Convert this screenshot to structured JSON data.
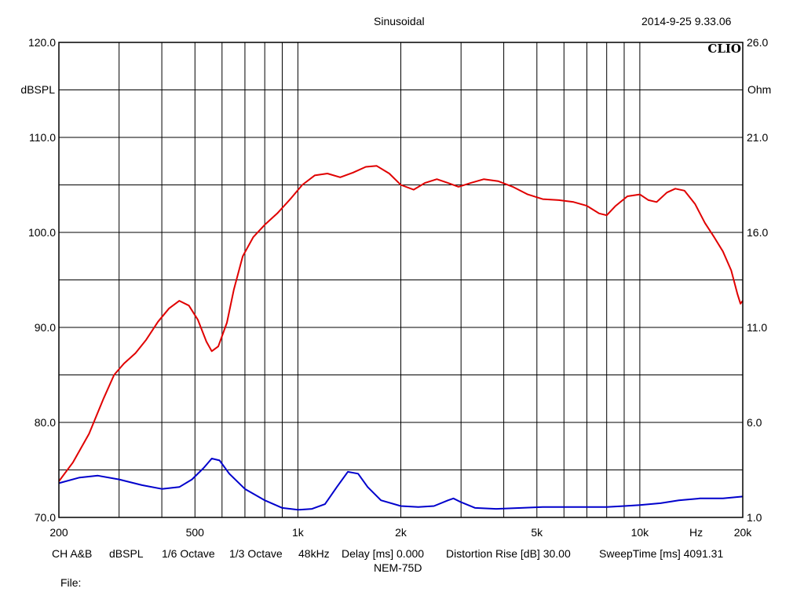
{
  "header": {
    "title": "Sinusoidal",
    "datetime": "2014-9-25 9.33.06",
    "brand": "CLIO"
  },
  "footer": {
    "settings": [
      {
        "key": "channel",
        "label": "CH A&B"
      },
      {
        "key": "unit",
        "label": "dBSPL"
      },
      {
        "key": "smoothing",
        "label": "1/6 Octave"
      },
      {
        "key": "resolution",
        "label": "1/3 Octave"
      },
      {
        "key": "samplerate",
        "label": "48kHz"
      },
      {
        "key": "delay",
        "label": "Delay [ms] 0.000"
      },
      {
        "key": "distortion",
        "label": "Distortion Rise [dB] 30.00"
      },
      {
        "key": "sweep",
        "label": "SweepTime [ms] 4091.31"
      }
    ],
    "device": "NEM-75D",
    "file_label": "File:"
  },
  "chart_data": {
    "type": "line",
    "xscale": "log",
    "xlim": [
      200,
      20000
    ],
    "ylim": [
      70,
      120
    ],
    "y2lim": [
      1,
      26
    ],
    "grid": true,
    "xlabel": "Hz",
    "ylabel": "dBSPL",
    "y2label": "Ohm",
    "x_ticks": [
      {
        "value": 200,
        "label": "200"
      },
      {
        "value": 500,
        "label": "500"
      },
      {
        "value": 1000,
        "label": "1k"
      },
      {
        "value": 2000,
        "label": "2k"
      },
      {
        "value": 5000,
        "label": "5k"
      },
      {
        "value": 10000,
        "label": "10k"
      },
      {
        "value": 20000,
        "label": "20k"
      }
    ],
    "x_unit_tick": {
      "value": 14000,
      "label": "Hz"
    },
    "y_ticks": [
      {
        "value": 120,
        "label": "120.0"
      },
      {
        "value": 110,
        "label": "110.0"
      },
      {
        "value": 100,
        "label": "100.0"
      },
      {
        "value": 90,
        "label": "90.0"
      },
      {
        "value": 80,
        "label": "80.0"
      },
      {
        "value": 70,
        "label": "70.0"
      }
    ],
    "y2_ticks": [
      {
        "value": 26,
        "label": "26.0"
      },
      {
        "value": 21,
        "label": "21.0"
      },
      {
        "value": 16,
        "label": "16.0"
      },
      {
        "value": 11,
        "label": "11.0"
      },
      {
        "value": 6,
        "label": "6.0"
      },
      {
        "value": 1,
        "label": "1.0"
      }
    ],
    "series": [
      {
        "axis": "left",
        "color": "#e00000",
        "points": [
          [
            200,
            73.8
          ],
          [
            220,
            75.8
          ],
          [
            245,
            78.8
          ],
          [
            270,
            82.5
          ],
          [
            290,
            85
          ],
          [
            310,
            86.2
          ],
          [
            335,
            87.3
          ],
          [
            360,
            88.7
          ],
          [
            390,
            90.6
          ],
          [
            420,
            92
          ],
          [
            450,
            92.8
          ],
          [
            480,
            92.3
          ],
          [
            510,
            90.8
          ],
          [
            540,
            88.5
          ],
          [
            560,
            87.5
          ],
          [
            585,
            88
          ],
          [
            620,
            90.5
          ],
          [
            650,
            94
          ],
          [
            690,
            97.5
          ],
          [
            740,
            99.5
          ],
          [
            800,
            100.8
          ],
          [
            870,
            102
          ],
          [
            950,
            103.5
          ],
          [
            1030,
            105
          ],
          [
            1120,
            106
          ],
          [
            1220,
            106.2
          ],
          [
            1330,
            105.8
          ],
          [
            1450,
            106.3
          ],
          [
            1580,
            106.9
          ],
          [
            1700,
            107
          ],
          [
            1850,
            106.2
          ],
          [
            2000,
            105
          ],
          [
            2180,
            104.5
          ],
          [
            2350,
            105.2
          ],
          [
            2550,
            105.6
          ],
          [
            2750,
            105.2
          ],
          [
            2950,
            104.8
          ],
          [
            3200,
            105.2
          ],
          [
            3500,
            105.6
          ],
          [
            3850,
            105.4
          ],
          [
            4250,
            104.8
          ],
          [
            4700,
            104
          ],
          [
            5200,
            103.5
          ],
          [
            5800,
            103.4
          ],
          [
            6400,
            103.2
          ],
          [
            7000,
            102.8
          ],
          [
            7600,
            102
          ],
          [
            8000,
            101.8
          ],
          [
            8500,
            102.8
          ],
          [
            9200,
            103.8
          ],
          [
            10000,
            104
          ],
          [
            10600,
            103.4
          ],
          [
            11200,
            103.2
          ],
          [
            12000,
            104.2
          ],
          [
            12700,
            104.6
          ],
          [
            13500,
            104.4
          ],
          [
            14500,
            103
          ],
          [
            15500,
            101
          ],
          [
            16500,
            99.5
          ],
          [
            17500,
            98
          ],
          [
            18500,
            96
          ],
          [
            19300,
            93.5
          ],
          [
            19700,
            92.5
          ],
          [
            20000,
            92.8
          ]
        ]
      },
      {
        "axis": "right",
        "color": "#0000cc",
        "points": [
          [
            200,
            2.8
          ],
          [
            230,
            3.1
          ],
          [
            260,
            3.2
          ],
          [
            300,
            3.0
          ],
          [
            350,
            2.7
          ],
          [
            400,
            2.5
          ],
          [
            450,
            2.6
          ],
          [
            490,
            3.0
          ],
          [
            530,
            3.6
          ],
          [
            560,
            4.1
          ],
          [
            590,
            4.0
          ],
          [
            630,
            3.3
          ],
          [
            700,
            2.5
          ],
          [
            800,
            1.9
          ],
          [
            900,
            1.5
          ],
          [
            1000,
            1.4
          ],
          [
            1100,
            1.45
          ],
          [
            1200,
            1.7
          ],
          [
            1300,
            2.6
          ],
          [
            1400,
            3.4
          ],
          [
            1500,
            3.3
          ],
          [
            1600,
            2.6
          ],
          [
            1750,
            1.9
          ],
          [
            2000,
            1.6
          ],
          [
            2250,
            1.55
          ],
          [
            2500,
            1.6
          ],
          [
            2750,
            1.9
          ],
          [
            2850,
            2.0
          ],
          [
            3000,
            1.8
          ],
          [
            3300,
            1.5
          ],
          [
            3800,
            1.45
          ],
          [
            4500,
            1.5
          ],
          [
            5200,
            1.55
          ],
          [
            6000,
            1.55
          ],
          [
            7000,
            1.55
          ],
          [
            8000,
            1.55
          ],
          [
            9000,
            1.6
          ],
          [
            10000,
            1.65
          ],
          [
            11500,
            1.75
          ],
          [
            13000,
            1.9
          ],
          [
            15000,
            2.0
          ],
          [
            17500,
            2.0
          ],
          [
            20000,
            2.1
          ]
        ]
      }
    ]
  }
}
